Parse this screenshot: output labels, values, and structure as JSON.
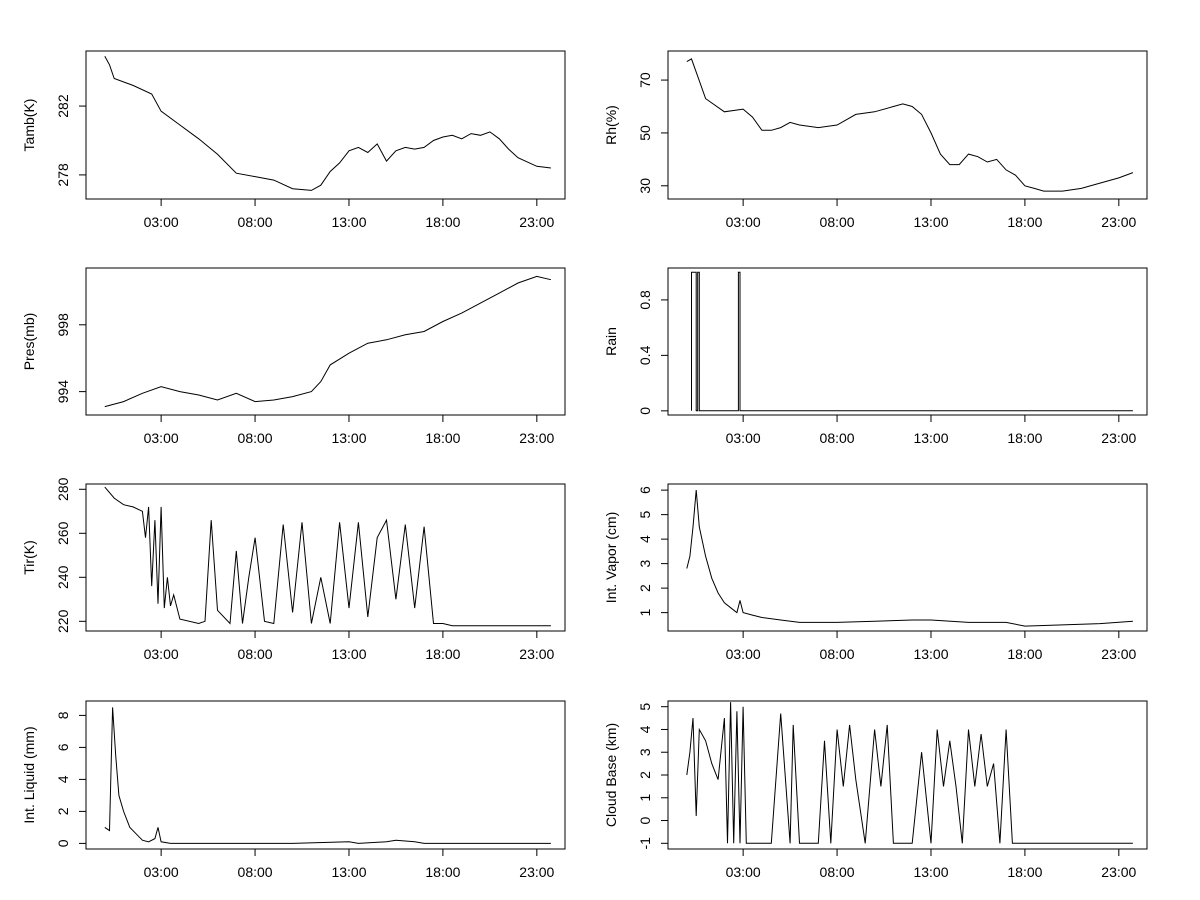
{
  "chart_data": [
    {
      "type": "line",
      "ylabel": "Tamb(K)",
      "x_ticks": [
        "03:00",
        "08:00",
        "13:00",
        "18:00",
        "23:00"
      ],
      "xlim": [
        "-01:00",
        "24:30"
      ],
      "ylim": [
        276.6,
        285.2
      ],
      "y_ticks": [
        278,
        282
      ],
      "x": [
        "00:00",
        "00:15",
        "00:30",
        "01:30",
        "02:30",
        "03:00",
        "04:00",
        "05:00",
        "06:00",
        "07:00",
        "08:00",
        "09:00",
        "10:00",
        "11:00",
        "11:30",
        "12:00",
        "12:30",
        "13:00",
        "13:30",
        "14:00",
        "14:30",
        "15:00",
        "15:30",
        "16:00",
        "16:30",
        "17:00",
        "17:30",
        "18:00",
        "18:30",
        "19:00",
        "19:30",
        "20:00",
        "20:30",
        "21:00",
        "21:30",
        "22:00",
        "23:00",
        "23:45"
      ],
      "values": [
        284.9,
        284.4,
        283.6,
        283.2,
        282.7,
        281.7,
        280.9,
        280.1,
        279.2,
        278.1,
        277.9,
        277.7,
        277.2,
        277.1,
        277.4,
        278.2,
        278.7,
        279.4,
        279.6,
        279.3,
        279.8,
        278.8,
        279.4,
        279.6,
        279.5,
        279.6,
        280.0,
        280.2,
        280.3,
        280.1,
        280.4,
        280.3,
        280.5,
        280.1,
        279.5,
        279.0,
        278.5,
        278.4
      ],
      "grid": false
    },
    {
      "type": "line",
      "ylabel": "Rh(%)",
      "x_ticks": [
        "03:00",
        "08:00",
        "13:00",
        "18:00",
        "23:00"
      ],
      "xlim": [
        "-01:00",
        "24:30"
      ],
      "ylim": [
        25,
        81
      ],
      "y_ticks": [
        30,
        50,
        70
      ],
      "x": [
        "00:00",
        "00:15",
        "00:30",
        "01:00",
        "02:00",
        "03:00",
        "03:30",
        "04:00",
        "04:30",
        "05:00",
        "05:30",
        "06:00",
        "07:00",
        "08:00",
        "09:00",
        "10:00",
        "11:00",
        "11:30",
        "12:00",
        "12:30",
        "13:00",
        "13:30",
        "14:00",
        "14:30",
        "15:00",
        "15:30",
        "16:00",
        "16:30",
        "17:00",
        "17:30",
        "18:00",
        "18:30",
        "19:00",
        "20:00",
        "21:00",
        "22:00",
        "23:00",
        "23:45"
      ],
      "values": [
        77,
        78,
        73,
        63,
        58,
        59,
        56,
        51,
        51,
        52,
        54,
        53,
        52,
        53,
        57,
        58,
        60,
        61,
        60,
        57,
        50,
        42,
        38,
        38,
        42,
        41,
        39,
        40,
        36,
        34,
        30,
        29,
        28,
        28,
        29,
        31,
        33,
        35
      ],
      "grid": false
    },
    {
      "type": "line",
      "ylabel": "Pres(mb)",
      "x_ticks": [
        "03:00",
        "08:00",
        "13:00",
        "18:00",
        "23:00"
      ],
      "xlim": [
        "-01:00",
        "24:30"
      ],
      "ylim": [
        992.6,
        1001.4
      ],
      "y_ticks": [
        994,
        998
      ],
      "x": [
        "00:00",
        "01:00",
        "02:00",
        "03:00",
        "04:00",
        "05:00",
        "06:00",
        "07:00",
        "08:00",
        "09:00",
        "10:00",
        "11:00",
        "11:30",
        "12:00",
        "13:00",
        "14:00",
        "15:00",
        "16:00",
        "17:00",
        "18:00",
        "19:00",
        "20:00",
        "21:00",
        "22:00",
        "23:00",
        "23:45"
      ],
      "values": [
        993.1,
        993.4,
        993.9,
        994.3,
        994.0,
        993.8,
        993.5,
        993.9,
        993.4,
        993.5,
        993.7,
        994.0,
        994.6,
        995.6,
        996.3,
        996.9,
        997.1,
        997.4,
        997.6,
        998.2,
        998.7,
        999.3,
        999.9,
        1000.5,
        1000.9,
        1000.7
      ],
      "grid": false
    },
    {
      "type": "line",
      "ylabel": "Rain",
      "x_ticks": [
        "03:00",
        "08:00",
        "13:00",
        "18:00",
        "23:00"
      ],
      "xlim": [
        "-01:00",
        "24:30"
      ],
      "ylim": [
        -0.03,
        1.03
      ],
      "y_ticks": [
        0.0,
        0.4,
        0.8
      ],
      "x": [
        "00:15",
        "00:15",
        "00:30",
        "00:30",
        "00:35",
        "00:35",
        "00:40",
        "00:40",
        "02:45",
        "02:45",
        "02:50",
        "02:50",
        "23:45"
      ],
      "values": [
        0,
        1,
        1,
        0,
        0,
        1,
        1,
        0,
        0,
        1,
        1,
        0,
        0
      ],
      "grid": false
    },
    {
      "type": "line",
      "ylabel": "Tir(K)",
      "x_ticks": [
        "03:00",
        "08:00",
        "13:00",
        "18:00",
        "23:00"
      ],
      "xlim": [
        "-01:00",
        "24:30"
      ],
      "ylim": [
        215.6,
        282.4
      ],
      "y_ticks": [
        220,
        240,
        260,
        280
      ],
      "x": [
        "00:00",
        "00:30",
        "01:00",
        "01:30",
        "02:00",
        "02:10",
        "02:20",
        "02:30",
        "02:40",
        "02:50",
        "03:00",
        "03:10",
        "03:20",
        "03:30",
        "03:40",
        "04:00",
        "05:00",
        "05:20",
        "05:40",
        "06:00",
        "06:40",
        "07:00",
        "07:20",
        "07:40",
        "08:00",
        "08:30",
        "09:00",
        "09:30",
        "10:00",
        "10:30",
        "11:00",
        "11:30",
        "12:00",
        "12:30",
        "13:00",
        "13:30",
        "14:00",
        "14:30",
        "15:00",
        "15:30",
        "16:00",
        "16:30",
        "17:00",
        "17:30",
        "18:00",
        "18:30",
        "19:00",
        "21:00",
        "23:00",
        "23:45"
      ],
      "values": [
        281,
        276,
        273,
        272,
        270,
        258,
        272,
        236,
        266,
        228,
        272,
        226,
        240,
        227,
        232,
        221,
        219,
        220,
        266,
        225,
        219,
        252,
        219,
        240,
        258,
        220,
        219,
        264,
        224,
        265,
        219,
        240,
        219,
        265,
        226,
        265,
        222,
        258,
        266,
        230,
        264,
        226,
        263,
        219,
        219,
        218,
        218,
        218,
        218,
        218
      ],
      "grid": false
    },
    {
      "type": "line",
      "ylabel": "Int. Vapor (cm)",
      "x_ticks": [
        "03:00",
        "08:00",
        "13:00",
        "18:00",
        "23:00"
      ],
      "xlim": [
        "-01:00",
        "24:30"
      ],
      "ylim": [
        0.25,
        6.25
      ],
      "y_ticks": [
        1,
        2,
        3,
        4,
        5,
        6
      ],
      "x": [
        "00:00",
        "00:10",
        "00:20",
        "00:30",
        "00:40",
        "01:00",
        "01:20",
        "01:40",
        "02:00",
        "02:20",
        "02:40",
        "02:50",
        "03:00",
        "03:30",
        "04:00",
        "05:00",
        "06:00",
        "08:00",
        "10:00",
        "12:00",
        "13:00",
        "15:00",
        "17:00",
        "18:00",
        "20:00",
        "22:00",
        "23:45"
      ],
      "values": [
        2.8,
        3.3,
        4.5,
        6.0,
        4.5,
        3.3,
        2.4,
        1.8,
        1.4,
        1.2,
        1.0,
        1.5,
        1.0,
        0.9,
        0.8,
        0.7,
        0.6,
        0.6,
        0.65,
        0.7,
        0.7,
        0.6,
        0.6,
        0.45,
        0.5,
        0.55,
        0.65
      ],
      "grid": false
    },
    {
      "type": "line",
      "ylabel": "Int. Liquid (mm)",
      "x_ticks": [
        "03:00",
        "08:00",
        "13:00",
        "18:00",
        "23:00"
      ],
      "xlim": [
        "-01:00",
        "24:30"
      ],
      "ylim": [
        -0.35,
        8.9
      ],
      "y_ticks": [
        0,
        2,
        4,
        6,
        8
      ],
      "x": [
        "00:00",
        "00:15",
        "00:25",
        "00:35",
        "00:45",
        "01:00",
        "01:20",
        "01:40",
        "02:00",
        "02:20",
        "02:40",
        "02:50",
        "03:00",
        "03:30",
        "05:00",
        "10:00",
        "13:00",
        "13:30",
        "15:00",
        "15:30",
        "16:30",
        "17:00",
        "20:00",
        "23:45"
      ],
      "values": [
        1.0,
        0.8,
        8.5,
        5.5,
        3.0,
        2.0,
        1.0,
        0.6,
        0.2,
        0.1,
        0.3,
        1.0,
        0.1,
        0.0,
        0.0,
        0.0,
        0.1,
        0.0,
        0.1,
        0.2,
        0.1,
        0.0,
        0.0,
        0.0
      ],
      "grid": false
    },
    {
      "type": "line",
      "ylabel": "Cloud Base (km)",
      "x_ticks": [
        "03:00",
        "08:00",
        "13:00",
        "18:00",
        "23:00"
      ],
      "xlim": [
        "-01:00",
        "24:30"
      ],
      "ylim": [
        -1.25,
        5.25
      ],
      "y_ticks": [
        -1,
        0,
        1,
        2,
        3,
        4,
        5
      ],
      "x": [
        "00:00",
        "00:10",
        "00:20",
        "00:30",
        "00:40",
        "01:00",
        "01:20",
        "01:40",
        "02:00",
        "02:10",
        "02:20",
        "02:30",
        "02:40",
        "02:50",
        "03:00",
        "03:10",
        "03:20",
        "03:30",
        "04:00",
        "04:30",
        "05:00",
        "05:30",
        "05:40",
        "06:00",
        "07:00",
        "07:20",
        "07:40",
        "08:00",
        "08:20",
        "08:40",
        "09:00",
        "09:30",
        "10:00",
        "10:20",
        "10:40",
        "11:00",
        "11:30",
        "12:00",
        "12:30",
        "13:00",
        "13:20",
        "13:40",
        "14:00",
        "14:20",
        "14:40",
        "15:00",
        "15:20",
        "15:40",
        "16:00",
        "16:20",
        "16:40",
        "17:00",
        "17:20",
        "17:40",
        "18:00",
        "19:00",
        "21:00",
        "23:45"
      ],
      "values": [
        2.0,
        3.0,
        4.5,
        0.2,
        4.0,
        3.5,
        2.5,
        1.8,
        4.5,
        -1,
        5.2,
        -1,
        4.8,
        -1,
        5.0,
        -1,
        -1,
        -1,
        -1,
        -1,
        4.7,
        -1,
        4.2,
        -1,
        -1,
        3.5,
        -1,
        4.0,
        1.5,
        4.2,
        1.8,
        -1,
        4.0,
        1.5,
        4.2,
        -1,
        -1,
        -1,
        3.0,
        -1,
        4.0,
        1.5,
        3.5,
        1.5,
        -1,
        4.0,
        1.5,
        3.8,
        1.5,
        2.5,
        -1,
        4.0,
        -1,
        -1,
        -1,
        -1,
        -1,
        -1
      ],
      "grid": false
    }
  ]
}
